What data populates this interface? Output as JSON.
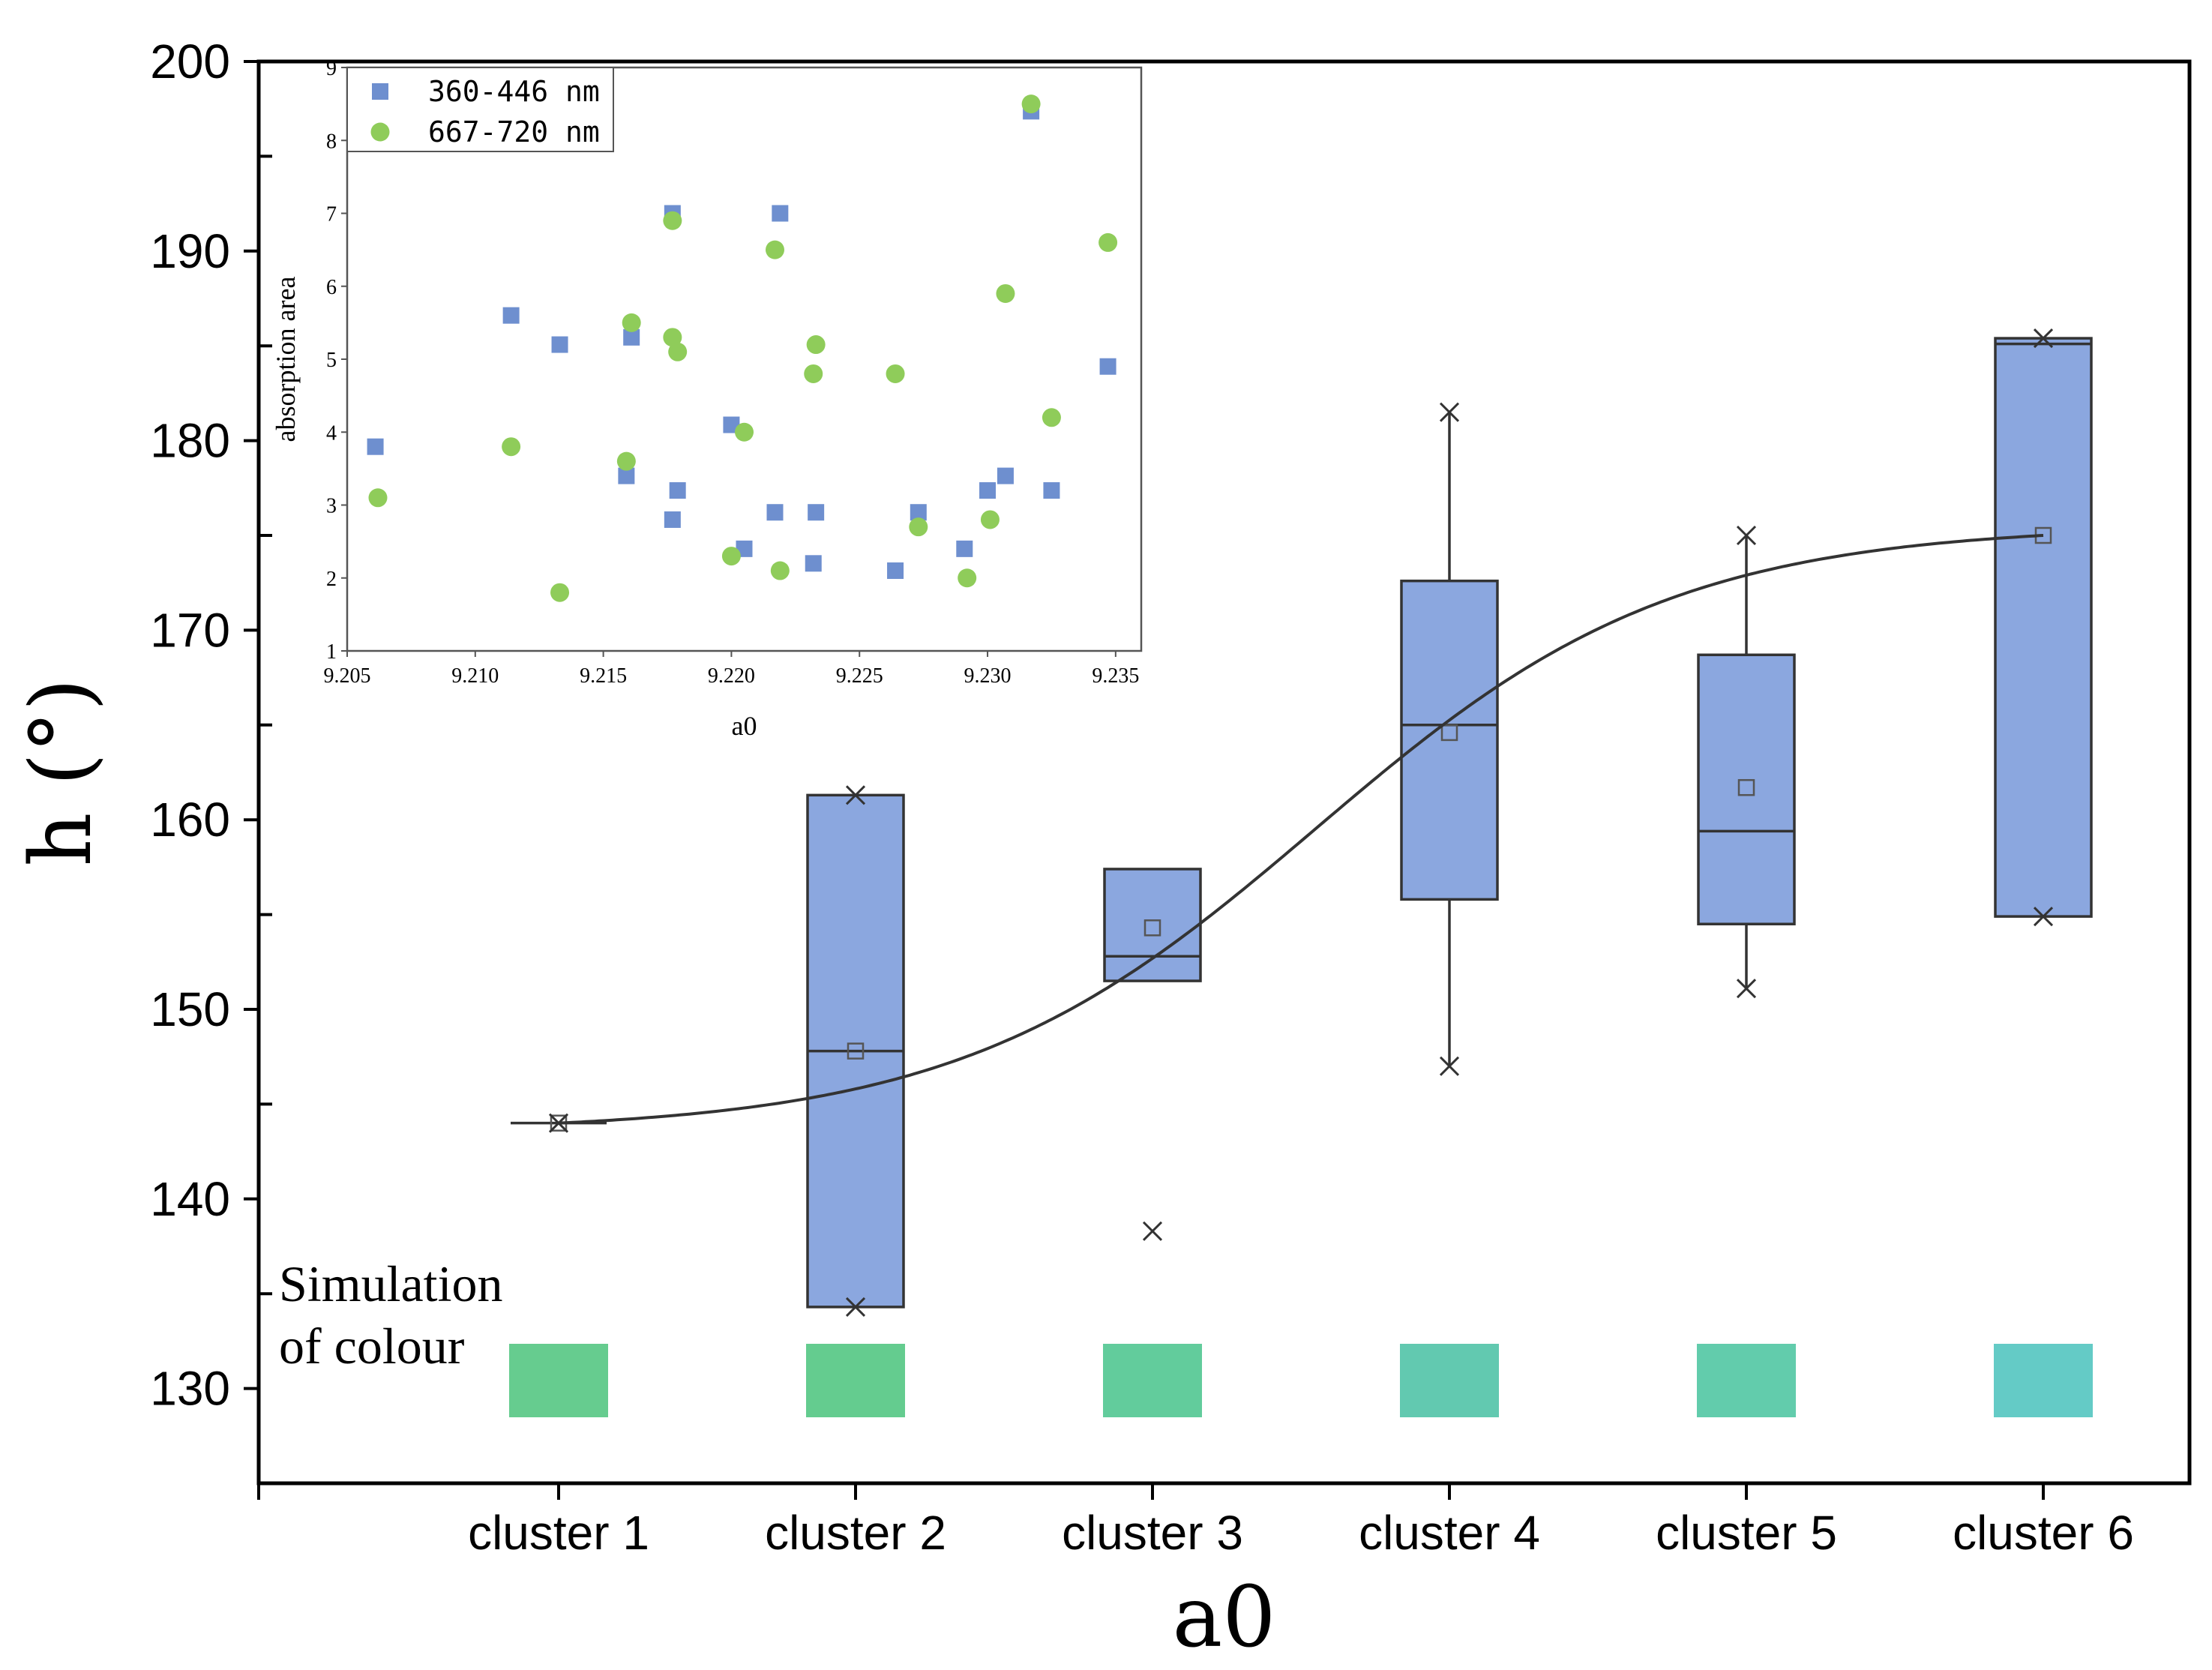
{
  "chart_data": [
    {
      "type": "box",
      "title": "",
      "xlabel": "a0",
      "ylabel": "h (°)",
      "ylim": [
        125,
        200
      ],
      "yticks": [
        130,
        140,
        150,
        160,
        170,
        180,
        190,
        200
      ],
      "categories": [
        "cluster 1",
        "cluster 2",
        "cluster 3",
        "cluster 4",
        "cluster 5",
        "cluster 6"
      ],
      "box_color": "#8ba7df",
      "box_edge_color": "#333333",
      "boxes": [
        {
          "min": 144.0,
          "q1": 144.0,
          "median": 144.0,
          "q3": 144.0,
          "max": 144.0,
          "mean": 144.0,
          "extremes": [
            144.0
          ],
          "outliers": []
        },
        {
          "min": 134.3,
          "q1": 134.3,
          "median": 147.8,
          "q3": 161.3,
          "max": 161.3,
          "mean": 147.8,
          "extremes": [
            134.3,
            161.3
          ],
          "outliers": []
        },
        {
          "min": 151.5,
          "q1": 151.5,
          "median": 152.8,
          "q3": 157.4,
          "max": 157.4,
          "mean": 154.3,
          "extremes": [],
          "outliers": [
            138.3
          ]
        },
        {
          "min": 147.0,
          "q1": 155.8,
          "median": 165.0,
          "q3": 172.6,
          "max": 181.5,
          "mean": 164.6,
          "extremes": [
            147.0,
            181.5
          ],
          "outliers": []
        },
        {
          "min": 151.1,
          "q1": 154.5,
          "median": 159.4,
          "q3": 168.7,
          "max": 175.0,
          "mean": 161.7,
          "extremes": [
            151.1,
            175.0
          ],
          "outliers": []
        },
        {
          "min": 154.9,
          "q1": 154.9,
          "median": 185.1,
          "q3": 185.4,
          "max": 185.4,
          "mean": 175.0,
          "extremes": [
            154.9,
            185.4
          ],
          "outliers": []
        }
      ],
      "trend_line": {
        "type": "sigmoid-fit",
        "through_means": true,
        "color": "#333333"
      },
      "colour_simulation": {
        "label_line1": "Simulation",
        "label_line2": "of colour",
        "swatches": [
          "#66cc8f",
          "#64cc8f",
          "#62cc9c",
          "#62c9b0",
          "#62ccac",
          "#64cbc6"
        ]
      }
    },
    {
      "type": "scatter",
      "title": "",
      "xlabel": "a0",
      "ylabel": "absorption area",
      "xlim": [
        9.205,
        9.236
      ],
      "ylim": [
        1,
        9
      ],
      "xticks": [
        "9.205",
        "9.210",
        "9.215",
        "9.220",
        "9.225",
        "9.230",
        "9.235"
      ],
      "yticks": [
        "1",
        "2",
        "3",
        "4",
        "5",
        "6",
        "7",
        "8",
        "9"
      ],
      "legend_position": "top-left",
      "series": [
        {
          "name": "360-446 nm",
          "marker": "square",
          "color": "#6e8fcf",
          "x": [
            9.2061,
            9.2114,
            9.2133,
            9.2159,
            9.2161,
            9.2177,
            9.2177,
            9.2179,
            9.22,
            9.2205,
            9.2217,
            9.2219,
            9.2232,
            9.2233,
            9.2264,
            9.2273,
            9.2291,
            9.23,
            9.2307,
            9.2317,
            9.2325,
            9.2347
          ],
          "y": [
            3.8,
            5.6,
            5.2,
            3.4,
            5.3,
            2.8,
            7.0,
            3.2,
            4.1,
            2.4,
            2.9,
            7.0,
            2.2,
            2.9,
            2.1,
            2.9,
            2.4,
            3.2,
            3.4,
            8.4,
            3.2,
            4.9
          ]
        },
        {
          "name": "667-720 nm",
          "marker": "circle",
          "color": "#8fcc5a",
          "x": [
            9.2062,
            9.2114,
            9.2133,
            9.2159,
            9.2161,
            9.2177,
            9.2177,
            9.2179,
            9.22,
            9.2205,
            9.2217,
            9.2219,
            9.2232,
            9.2233,
            9.2264,
            9.2273,
            9.2292,
            9.2301,
            9.2307,
            9.2317,
            9.2325,
            9.2347
          ],
          "y": [
            3.1,
            3.8,
            1.8,
            3.6,
            5.5,
            6.9,
            5.3,
            5.1,
            2.3,
            4.0,
            6.5,
            2.1,
            4.8,
            5.2,
            4.8,
            2.7,
            2.0,
            2.8,
            5.9,
            8.5,
            4.2,
            6.6
          ]
        }
      ]
    }
  ]
}
